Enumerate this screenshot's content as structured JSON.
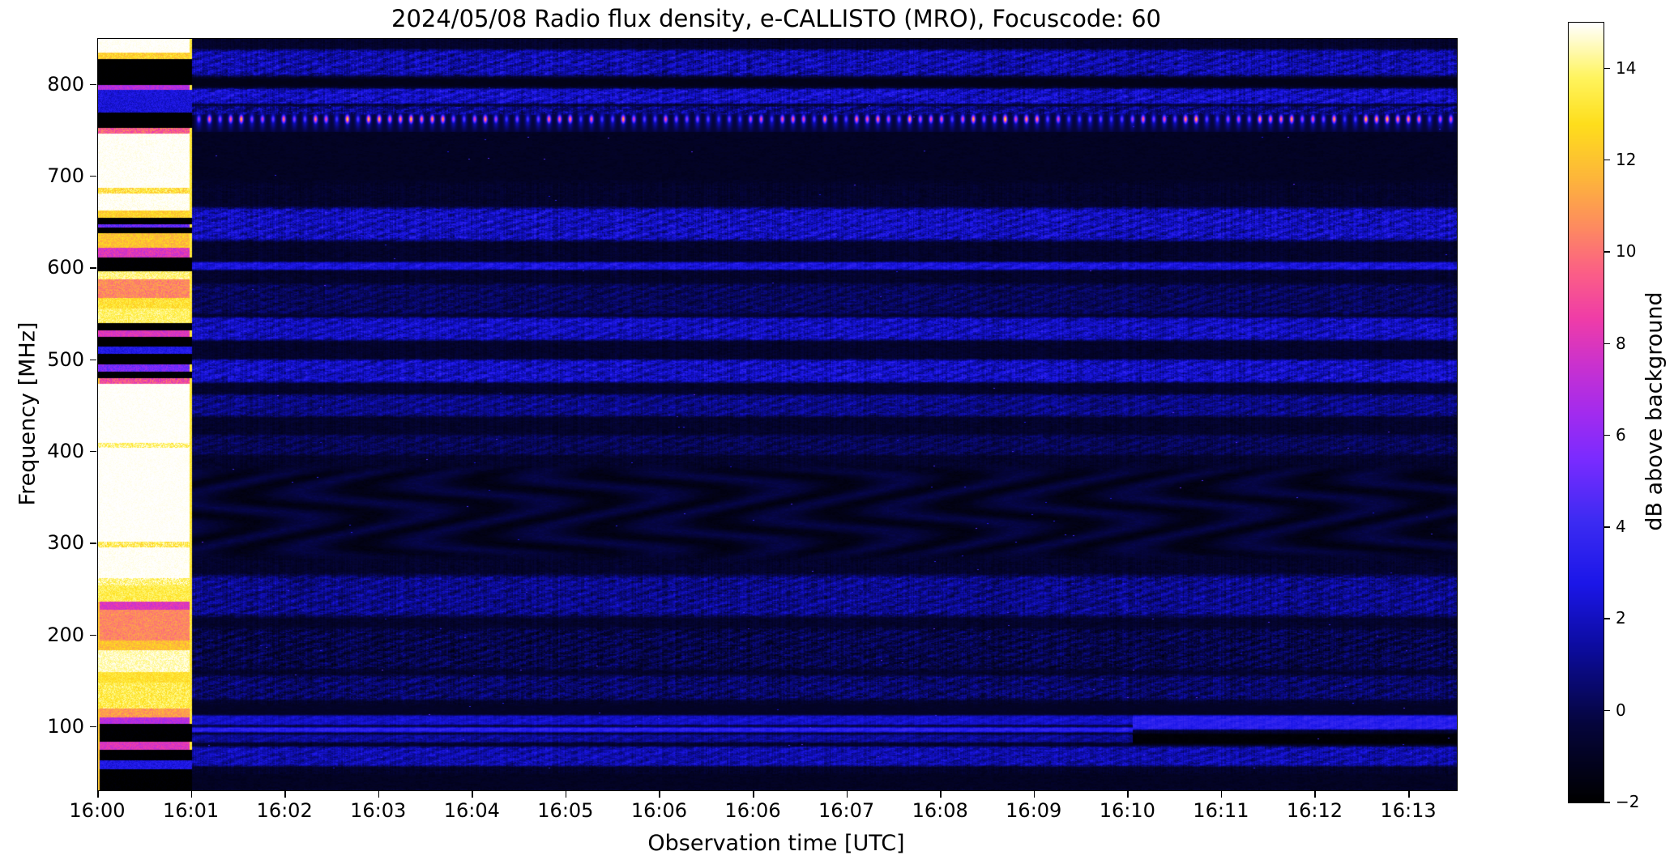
{
  "chart_data": {
    "type": "heatmap",
    "title": "2024/05/08  Radio flux density, e-CALLISTO (MRO), Focuscode: 60",
    "xlabel": "Observation time [UTC]",
    "ylabel": "Frequency [MHz]",
    "x_tick_labels": [
      "16:00",
      "16:01",
      "16:02",
      "16:03",
      "16:04",
      "16:05",
      "16:06",
      "16:06",
      "16:07",
      "16:08",
      "16:09",
      "16:10",
      "16:11",
      "16:12",
      "16:13"
    ],
    "x_range_minutes": [
      0,
      14.51
    ],
    "y_ticks": [
      800,
      700,
      600,
      500,
      400,
      300,
      200,
      100
    ],
    "ylim": [
      31,
      850
    ],
    "grid": false,
    "colorbar": {
      "label": "dB above background",
      "ticks": [
        14,
        12,
        10,
        8,
        6,
        4,
        2,
        0,
        -2
      ],
      "tick_labels": [
        "14",
        "12",
        "10",
        "8",
        "6",
        "4",
        "2",
        "0",
        "−2"
      ],
      "vmin": -2,
      "vmax": 15,
      "position": "right"
    },
    "colormap": {
      "name": "gnuplot2-like",
      "stops": [
        [
          0.0,
          "#000000"
        ],
        [
          0.1,
          "#05053c"
        ],
        [
          0.2,
          "#0c0ca0"
        ],
        [
          0.28,
          "#1b16e8"
        ],
        [
          0.36,
          "#3c2bf2"
        ],
        [
          0.44,
          "#7a2bff"
        ],
        [
          0.5,
          "#a32bee"
        ],
        [
          0.56,
          "#c931cf"
        ],
        [
          0.62,
          "#ef3ca8"
        ],
        [
          0.68,
          "#fb5f86"
        ],
        [
          0.74,
          "#fd8c5f"
        ],
        [
          0.8,
          "#fdb53b"
        ],
        [
          0.87,
          "#fede1c"
        ],
        [
          0.93,
          "#fff45e"
        ],
        [
          1.0,
          "#ffffff"
        ]
      ]
    },
    "background": {
      "db": -0.75,
      "noise": 1.0
    },
    "calibration_column": {
      "minute_range": [
        0,
        1
      ],
      "stripes": [
        {
          "f": [
            835,
            850
          ],
          "db": 15,
          "noise": 0.25
        },
        {
          "f": [
            828,
            835
          ],
          "db": 12.5,
          "noise": 1.2
        },
        {
          "f": [
            800,
            828
          ],
          "db": -2,
          "noise": 0.15
        },
        {
          "f": [
            794,
            800
          ],
          "db": 7,
          "noise": 1.0
        },
        {
          "f": [
            770,
            794
          ],
          "db": 2.5,
          "noise": 0.9
        },
        {
          "f": [
            753,
            770
          ],
          "db": -2,
          "noise": 0.2
        },
        {
          "f": [
            747,
            753
          ],
          "db": 9.5,
          "noise": 1.5
        },
        {
          "f": [
            688,
            747
          ],
          "db": 15,
          "noise": 0.3
        },
        {
          "f": [
            681,
            688
          ],
          "db": 13,
          "noise": 1.5
        },
        {
          "f": [
            663,
            681
          ],
          "db": 15,
          "noise": 0.4
        },
        {
          "f": [
            655,
            663
          ],
          "db": 12.5,
          "noise": 1.0
        },
        {
          "f": [
            648,
            655
          ],
          "db": -2,
          "noise": 0.3
        },
        {
          "f": [
            644,
            648
          ],
          "db": 5,
          "noise": 1.0
        },
        {
          "f": [
            638,
            644
          ],
          "db": -2,
          "noise": 0.3
        },
        {
          "f": [
            622,
            638
          ],
          "db": 12,
          "noise": 1.0
        },
        {
          "f": [
            612,
            622
          ],
          "db": 8,
          "noise": 1.0
        },
        {
          "f": [
            597,
            612
          ],
          "db": -2,
          "noise": 0.3
        },
        {
          "f": [
            588,
            597
          ],
          "db": 14,
          "noise": 0.8
        },
        {
          "f": [
            568,
            588
          ],
          "db": 10.5,
          "noise": 1.0
        },
        {
          "f": [
            556,
            568
          ],
          "db": 13,
          "noise": 1.0
        },
        {
          "f": [
            540,
            556
          ],
          "db": 13.8,
          "noise": 0.8
        },
        {
          "f": [
            532,
            540
          ],
          "db": -2,
          "noise": 0.3
        },
        {
          "f": [
            525,
            532
          ],
          "db": 8,
          "noise": 0.8
        },
        {
          "f": [
            515,
            525
          ],
          "db": -2,
          "noise": 0.3
        },
        {
          "f": [
            507,
            515
          ],
          "db": 3,
          "noise": 0.8
        },
        {
          "f": [
            495,
            507
          ],
          "db": -2,
          "noise": 0.3
        },
        {
          "f": [
            487,
            495
          ],
          "db": 5.5,
          "noise": 1.0
        },
        {
          "f": [
            480,
            487
          ],
          "db": -2,
          "noise": 0.5
        },
        {
          "f": [
            474,
            480
          ],
          "db": 9,
          "noise": 1.5
        },
        {
          "f": [
            410,
            474
          ],
          "db": 15,
          "noise": 0.2
        },
        {
          "f": [
            404,
            410
          ],
          "db": 14,
          "noise": 1.3
        },
        {
          "f": [
            302,
            404
          ],
          "db": 15,
          "noise": 0.2
        },
        {
          "f": [
            296,
            302
          ],
          "db": 13.5,
          "noise": 1.5
        },
        {
          "f": [
            262,
            296
          ],
          "db": 15,
          "noise": 0.3
        },
        {
          "f": [
            254,
            262
          ],
          "db": 14,
          "noise": 1.2
        },
        {
          "f": [
            237,
            254
          ],
          "db": 13.5,
          "noise": 0.8
        },
        {
          "f": [
            228,
            237
          ],
          "db": 8,
          "noise": 0.8
        },
        {
          "f": [
            194,
            228
          ],
          "db": 10.5,
          "noise": 0.8
        },
        {
          "f": [
            184,
            194
          ],
          "db": 12,
          "noise": 1.0
        },
        {
          "f": [
            160,
            184
          ],
          "db": 14.5,
          "noise": 0.6
        },
        {
          "f": [
            148,
            160
          ],
          "db": 13,
          "noise": 0.8
        },
        {
          "f": [
            120,
            148
          ],
          "db": 13.5,
          "noise": 1.0
        },
        {
          "f": [
            110,
            120
          ],
          "db": 11,
          "noise": 1.0
        },
        {
          "f": [
            103,
            110
          ],
          "db": 7,
          "noise": 0.8
        },
        {
          "f": [
            84,
            103
          ],
          "db": -2,
          "noise": 0.3
        },
        {
          "f": [
            75,
            84
          ],
          "db": 8,
          "noise": 0.8
        },
        {
          "f": [
            64,
            75
          ],
          "db": -2,
          "noise": 0.3
        },
        {
          "f": [
            54,
            64
          ],
          "db": 2.8,
          "noise": 0.8
        },
        {
          "f": [
            31,
            54
          ],
          "db": -2,
          "noise": 0.3
        }
      ]
    },
    "bands": [
      {
        "f": [
          808,
          840
        ],
        "db": 1.6,
        "var": 1.7,
        "tex": "mottled"
      },
      {
        "f": [
          797,
          808
        ],
        "db": -1.3,
        "var": 0.5,
        "tex": "flat"
      },
      {
        "f": [
          778,
          797
        ],
        "db": 2.0,
        "var": 1.7,
        "tex": "mottled"
      },
      {
        "f": [
          766,
          778
        ],
        "db": 0.8,
        "var": 1.9,
        "tex": "mottled"
      },
      {
        "f": [
          755,
          766
        ],
        "db": -1.0,
        "var": 0.8,
        "tex": "flat"
      },
      {
        "f": [
          690,
          755
        ],
        "db": -1.0,
        "var": 0.6,
        "tex": "flat"
      },
      {
        "f": [
          628,
          668
        ],
        "db": 1.9,
        "var": 1.7,
        "tex": "mottled"
      },
      {
        "f": [
          597,
          608
        ],
        "db": 2.6,
        "var": 1.1,
        "tex": "mottled"
      },
      {
        "f": [
          548,
          585
        ],
        "db": 0.2,
        "var": 1.0,
        "tex": "mottled"
      },
      {
        "f": [
          520,
          548
        ],
        "db": 1.9,
        "var": 1.5,
        "tex": "mottled"
      },
      {
        "f": [
          474,
          502
        ],
        "db": 2.0,
        "var": 1.6,
        "tex": "mottled"
      },
      {
        "f": [
          437,
          464
        ],
        "db": 0.9,
        "var": 1.2,
        "tex": "mottled"
      },
      {
        "f": [
          395,
          420
        ],
        "db": 0.1,
        "var": 0.9,
        "tex": "mottled"
      },
      {
        "f": [
          280,
          388
        ],
        "db": -0.6,
        "var": 0.8,
        "tex": "wavy"
      },
      {
        "f": [
          218,
          268
        ],
        "db": 1.0,
        "var": 1.4,
        "tex": "mottled"
      },
      {
        "f": [
          160,
          210
        ],
        "db": -0.1,
        "var": 1.3,
        "tex": "mottled"
      },
      {
        "f": [
          128,
          158
        ],
        "db": 0.4,
        "var": 1.3,
        "tex": "mottled"
      },
      {
        "f": [
          108,
          126
        ],
        "db": -0.9,
        "var": 0.6,
        "tex": "flat"
      },
      {
        "f": [
          101,
          114
        ],
        "db": 2.1,
        "var": 0.8,
        "tex": "mottled",
        "m": [
          1,
          11.05
        ]
      },
      {
        "f": [
          93,
          101
        ],
        "db": 3.4,
        "var": 0.7,
        "tex": "mottled",
        "m": [
          1,
          11.05
        ]
      },
      {
        "f": [
          82,
          93
        ],
        "db": 1.2,
        "var": 0.9,
        "tex": "mottled",
        "m": [
          1,
          11.05
        ]
      },
      {
        "f": [
          96,
          114
        ],
        "db": 3.3,
        "var": 0.7,
        "tex": "mottled",
        "m": [
          11.05,
          14.51
        ]
      },
      {
        "f": [
          80,
          94
        ],
        "db": -1.8,
        "var": 0.2,
        "tex": "flat",
        "m": [
          11.05,
          14.51
        ]
      },
      {
        "f": [
          56,
          80
        ],
        "db": 1.6,
        "var": 1.3,
        "tex": "mottled"
      },
      {
        "f": [
          31,
          50
        ],
        "db": -1.0,
        "var": 0.7,
        "tex": "flat"
      }
    ],
    "pulse_train": {
      "f_center": 762.5,
      "f_halfwidth": 4.5,
      "halo_halfwidth": 10,
      "period_minutes": 0.1133,
      "start_minute": 1.02,
      "db_min": 5,
      "db_max": 14
    },
    "speckles": {
      "count_low": 150,
      "f_range_low": [
        55,
        470
      ],
      "count_high": 50,
      "f_range_high": [
        560,
        800
      ],
      "db_range": [
        2.5,
        5
      ]
    }
  }
}
